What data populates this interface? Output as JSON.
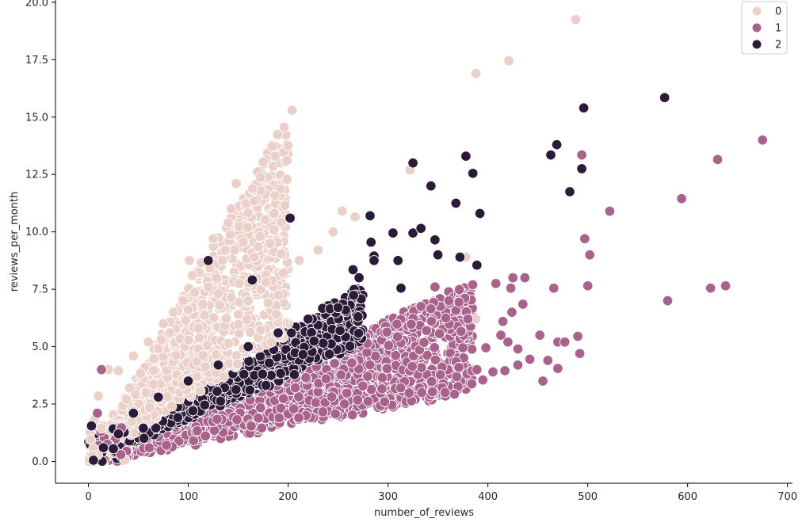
{
  "colors": {
    "cluster_0": "#ead0c9",
    "cluster_1": "#a8628b",
    "cluster_2": "#2c1b38",
    "marker_edge": "#ffffff",
    "axis": "#000000"
  },
  "chart_data": {
    "type": "scatter",
    "title": "",
    "xlabel": "number_of_reviews",
    "ylabel": "reviews_per_month",
    "xlim": [
      -33,
      705
    ],
    "ylim": [
      -0.95,
      20.1
    ],
    "xticks": [
      0,
      100,
      200,
      300,
      400,
      500,
      600,
      700
    ],
    "yticks": [
      0.0,
      2.5,
      5.0,
      7.5,
      10.0,
      12.5,
      15.0,
      17.5,
      20.0
    ],
    "xtick_labels": [
      "0",
      "100",
      "200",
      "300",
      "400",
      "500",
      "600",
      "700"
    ],
    "ytick_labels": [
      "0.0",
      "2.5",
      "5.0",
      "7.5",
      "10.0",
      "12.5",
      "15.0",
      "17.5",
      "20.0"
    ],
    "grid": false,
    "legend_position": "top-right",
    "notes": "Dense clusters rendered as overlapping markers; outlier points listed explicitly in series.",
    "series": [
      {
        "name": "0",
        "color_key": "cluster_0",
        "points": [
          [
            488,
            19.25
          ],
          [
            421,
            17.45
          ],
          [
            388,
            16.9
          ],
          [
            204,
            15.3
          ],
          [
            175,
            13.05
          ],
          [
            148,
            12.1
          ],
          [
            322,
            12.7
          ],
          [
            143,
            11.0
          ],
          [
            254,
            10.9
          ],
          [
            267,
            10.65
          ],
          [
            186,
            10.8
          ],
          [
            140,
            10.4
          ],
          [
            245,
            10.0
          ],
          [
            125,
            9.7
          ],
          [
            172,
            9.8
          ],
          [
            155,
            9.55
          ],
          [
            182,
            9.5
          ],
          [
            170,
            9.35
          ],
          [
            230,
            9.2
          ],
          [
            137,
            9.2
          ],
          [
            193,
            9.05
          ],
          [
            166,
            8.9
          ],
          [
            211,
            8.75
          ],
          [
            101,
            8.75
          ],
          [
            113,
            8.65
          ],
          [
            195,
            8.2
          ],
          [
            104,
            8.1
          ],
          [
            151,
            7.75
          ],
          [
            388,
            6.2
          ],
          [
            378,
            8.9
          ],
          [
            20,
            4.0
          ],
          [
            30,
            3.95
          ],
          [
            45,
            4.6
          ],
          [
            10,
            2.85
          ],
          [
            38,
            2.7
          ],
          [
            2,
            0.95
          ],
          [
            5,
            0.55
          ],
          [
            4,
            0.25
          ],
          [
            6,
            1.8
          ],
          [
            13,
            1.45
          ],
          [
            60,
            5.2
          ],
          [
            75,
            6.0
          ],
          [
            85,
            6.5
          ],
          [
            95,
            7.0
          ],
          [
            120,
            7.6
          ],
          [
            130,
            7.3
          ],
          [
            150,
            6.4
          ],
          [
            160,
            7.0
          ],
          [
            180,
            6.9
          ],
          [
            110,
            5.8
          ]
        ],
        "cloud": [
          [
            5,
            0.5
          ],
          [
            180,
            9.0
          ],
          [
            15,
            0.4
          ],
          [
            40,
            3.2
          ],
          [
            60,
            4.5
          ],
          [
            90,
            6.5
          ],
          [
            120,
            7.8
          ],
          [
            150,
            8.6
          ]
        ]
      },
      {
        "name": "1",
        "color_key": "cluster_1",
        "points": [
          [
            675,
            14.0
          ],
          [
            630,
            13.15
          ],
          [
            494,
            13.35
          ],
          [
            594,
            11.45
          ],
          [
            522,
            10.9
          ],
          [
            497,
            9.7
          ],
          [
            502,
            9.0
          ],
          [
            580,
            7.0
          ],
          [
            623,
            7.55
          ],
          [
            638,
            7.65
          ],
          [
            500,
            7.65
          ],
          [
            466,
            7.55
          ],
          [
            437,
            8.0
          ],
          [
            425,
            8.0
          ],
          [
            408,
            7.75
          ],
          [
            423,
            7.55
          ],
          [
            424,
            6.5
          ],
          [
            435,
            6.85
          ],
          [
            442,
            4.45
          ],
          [
            460,
            4.4
          ],
          [
            452,
            5.5
          ],
          [
            470,
            5.2
          ],
          [
            490,
            5.45
          ],
          [
            492,
            4.7
          ],
          [
            477,
            5.2
          ],
          [
            455,
            3.5
          ],
          [
            470,
            4.05
          ],
          [
            430,
            4.2
          ],
          [
            417,
            3.95
          ],
          [
            405,
            3.9
          ],
          [
            395,
            3.55
          ],
          [
            389,
            4.0
          ],
          [
            413,
            5.5
          ],
          [
            420,
            5.2
          ],
          [
            415,
            6.1
          ],
          [
            13,
            4.0
          ],
          [
            9,
            2.1
          ],
          [
            375,
            4.95
          ],
          [
            343,
            6.65
          ],
          [
            333,
            6.75
          ],
          [
            347,
            7.6
          ],
          [
            361,
            7.0
          ],
          [
            380,
            6.2
          ],
          [
            398,
            4.95
          ],
          [
            430,
            4.9
          ]
        ],
        "cloud": [
          [
            5,
            0.1
          ],
          [
            380,
            3.0
          ],
          [
            20,
            0.2
          ],
          [
            100,
            1.2
          ],
          [
            200,
            2.2
          ],
          [
            300,
            3.0
          ],
          [
            150,
            2.8
          ],
          [
            250,
            4.0
          ]
        ]
      },
      {
        "name": "2",
        "color_key": "cluster_2",
        "points": [
          [
            577,
            15.85
          ],
          [
            496,
            15.4
          ],
          [
            469,
            13.8
          ],
          [
            463,
            13.35
          ],
          [
            378,
            13.3
          ],
          [
            325,
            13.0
          ],
          [
            494,
            12.75
          ],
          [
            385,
            12.55
          ],
          [
            343,
            12.0
          ],
          [
            482,
            11.75
          ],
          [
            368,
            11.25
          ],
          [
            392,
            10.8
          ],
          [
            202,
            10.6
          ],
          [
            282,
            10.7
          ],
          [
            305,
            9.95
          ],
          [
            325,
            9.95
          ],
          [
            333,
            10.15
          ],
          [
            283,
            9.55
          ],
          [
            347,
            9.65
          ],
          [
            350,
            9.0
          ],
          [
            286,
            8.95
          ],
          [
            372,
            8.9
          ],
          [
            310,
            8.75
          ],
          [
            389,
            8.55
          ],
          [
            286,
            8.75
          ],
          [
            265,
            8.35
          ],
          [
            271,
            8.0
          ],
          [
            313,
            7.55
          ],
          [
            120,
            8.75
          ],
          [
            164,
            7.9
          ],
          [
            3,
            1.55
          ],
          [
            5,
            0.05
          ],
          [
            15,
            0.6
          ],
          [
            25,
            0.55
          ],
          [
            30,
            1.2
          ],
          [
            55,
            1.45
          ],
          [
            45,
            2.1
          ],
          [
            70,
            2.8
          ],
          [
            100,
            3.5
          ],
          [
            130,
            4.2
          ],
          [
            160,
            5.0
          ],
          [
            190,
            5.6
          ],
          [
            220,
            6.2
          ],
          [
            250,
            6.7
          ],
          [
            270,
            6.3
          ]
        ],
        "cloud": [
          [
            20,
            0.6
          ],
          [
            270,
            7.5
          ],
          [
            40,
            1.5
          ],
          [
            80,
            2.5
          ],
          [
            120,
            3.8
          ],
          [
            170,
            4.8
          ],
          [
            210,
            5.8
          ],
          [
            240,
            6.5
          ]
        ]
      }
    ]
  }
}
